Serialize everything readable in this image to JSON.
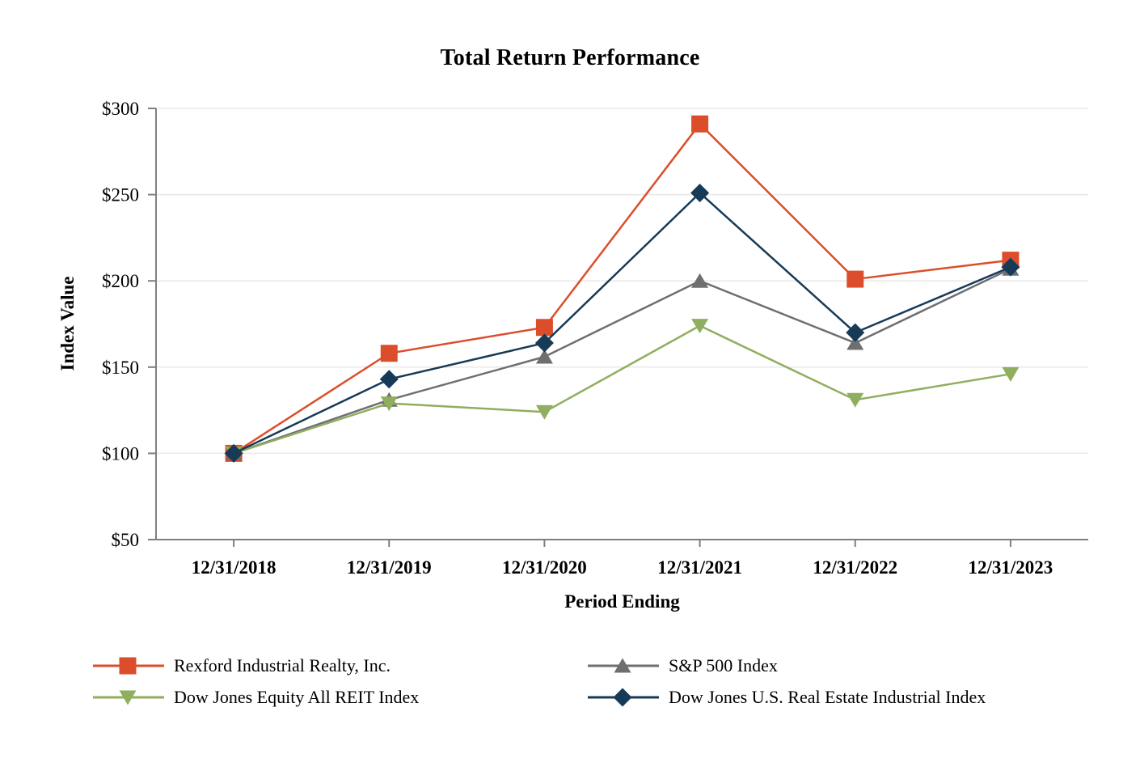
{
  "title": "Total Return Performance",
  "chart_data": {
    "type": "line",
    "title": "Total Return Performance",
    "xlabel": "Period Ending",
    "ylabel": "Index Value",
    "categories": [
      "12/31/2018",
      "12/31/2019",
      "12/31/2020",
      "12/31/2021",
      "12/31/2022",
      "12/31/2023"
    ],
    "ylim": [
      50,
      300
    ],
    "y_tick_interval": 50,
    "y_tick_labels": [
      "$50",
      "$100",
      "$150",
      "$200",
      "$250",
      "$300"
    ],
    "grid": "horizontal-light",
    "legend_position": "bottom",
    "series": [
      {
        "name": "Rexford Industrial Realty, Inc.",
        "marker": "square",
        "color": "#DC4E2B",
        "values": [
          100,
          158,
          173,
          291,
          201,
          212
        ]
      },
      {
        "name": "S&P 500 Index",
        "marker": "triangle-up",
        "color": "#6E6F71",
        "values": [
          100,
          131,
          156,
          200,
          164,
          207
        ]
      },
      {
        "name": "Dow Jones Equity All REIT Index",
        "marker": "triangle-down",
        "color": "#90AE5F",
        "values": [
          100,
          129,
          124,
          174,
          131,
          146
        ]
      },
      {
        "name": "Dow Jones U.S. Real Estate Industrial Index",
        "marker": "diamond",
        "color": "#173A57",
        "values": [
          100,
          143,
          164,
          251,
          170,
          208
        ]
      }
    ],
    "axis_color": "#7F7F7F",
    "grid_color": "#E9E9E9"
  }
}
